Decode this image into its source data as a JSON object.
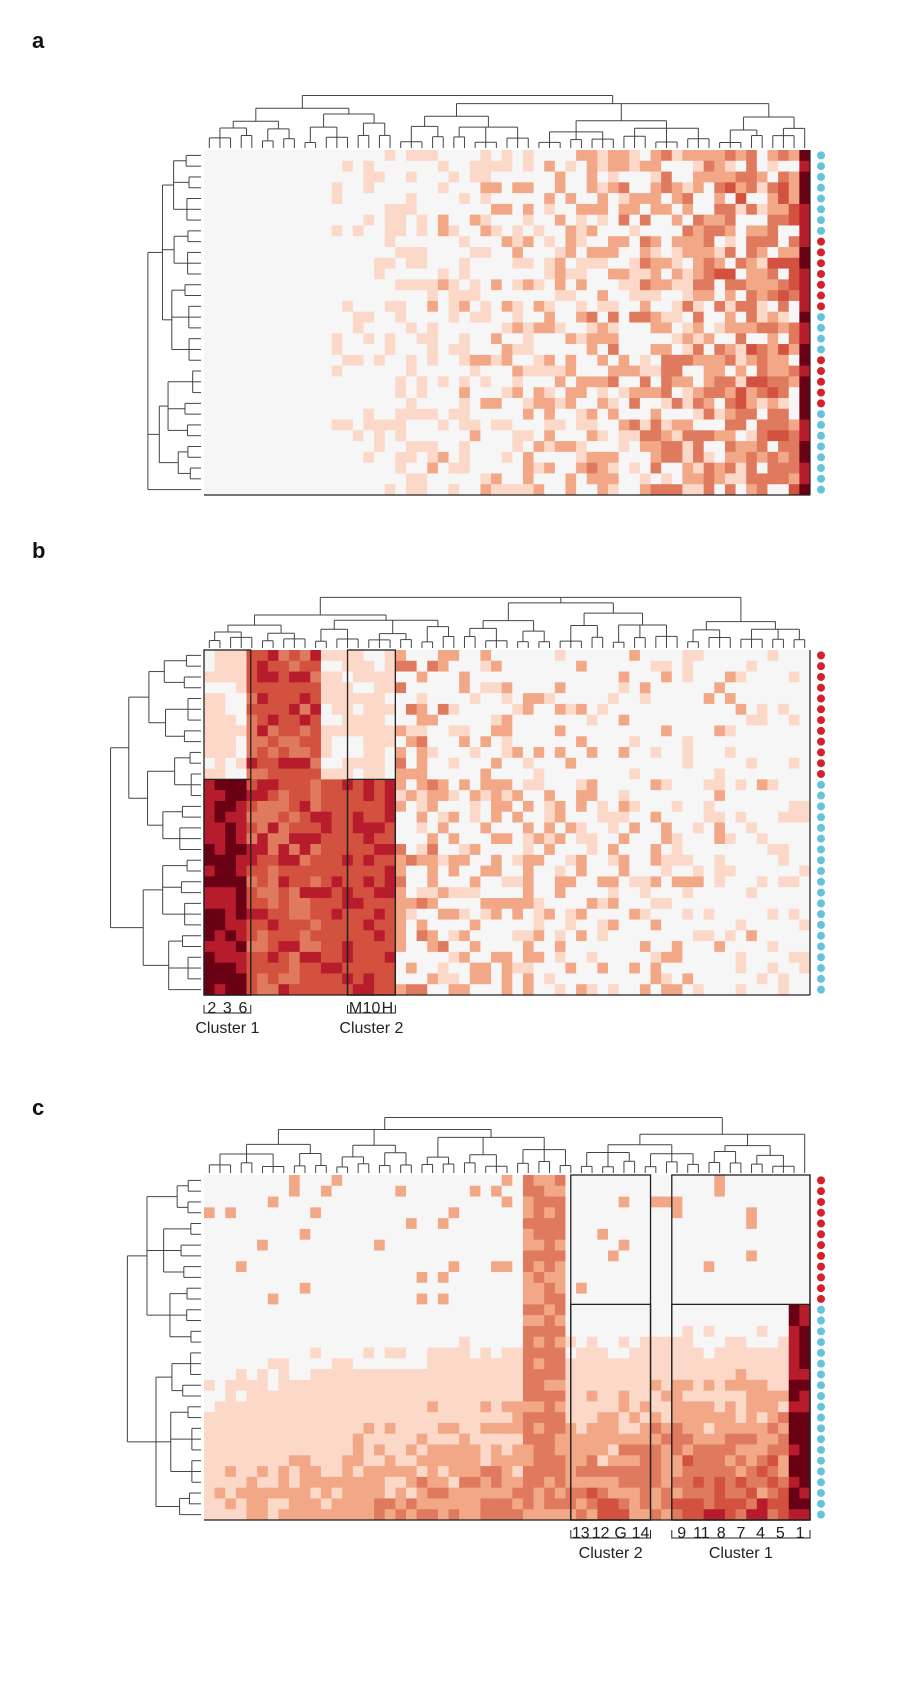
{
  "figure": {
    "panels": [
      {
        "id": "a",
        "label": "a",
        "rows": 32,
        "cols": 57
      },
      {
        "id": "b",
        "label": "b",
        "rows": 32,
        "cols": 57,
        "groups": [
          {
            "name": "Cluster 1",
            "columns": [
              "2",
              "3",
              "6"
            ]
          },
          {
            "name": "Cluster 2",
            "columns": [
              "M",
              "10",
              "H"
            ]
          }
        ]
      },
      {
        "id": "c",
        "label": "c",
        "rows": 32,
        "cols": 57,
        "groups": [
          {
            "name": "Cluster 2",
            "columns": [
              "13",
              "12",
              "G",
              "14"
            ]
          },
          {
            "name": "Cluster 1",
            "columns": [
              "9",
              "11",
              "8",
              "7",
              "4",
              "5",
              "1"
            ]
          }
        ]
      }
    ],
    "colors": {
      "scale": [
        "#f6f6f6",
        "#fbd8c8",
        "#f2a887",
        "#e07a5f",
        "#d2513f",
        "#b71c2c",
        "#6a0014"
      ],
      "group_red": "#d6202a",
      "group_blue": "#66c4da",
      "dendrogram": "#444444"
    }
  }
}
